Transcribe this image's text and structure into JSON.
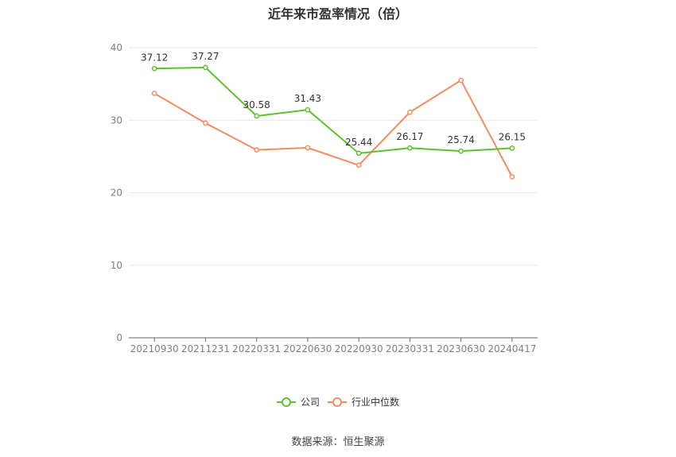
{
  "title": "近年来市盈率情况（倍）",
  "source": "数据来源：恒生聚源",
  "colors": {
    "company": "#5ac32f",
    "industry": "#f28c5f",
    "grid": "#e6e6e6",
    "axis": "#666666"
  },
  "chart_data": {
    "type": "line",
    "categories": [
      "20210930",
      "20211231",
      "20220331",
      "20220630",
      "20220930",
      "20230331",
      "20230630",
      "20240417"
    ],
    "ylim": [
      0,
      40
    ],
    "yticks": [
      0,
      10,
      20,
      30,
      40
    ],
    "grid": true,
    "legend_position": "bottom-center",
    "series": [
      {
        "name": "公司",
        "values": [
          37.12,
          37.27,
          30.58,
          31.43,
          25.44,
          26.17,
          25.74,
          26.15
        ],
        "labels": [
          "37.12",
          "37.27",
          "30.58",
          "31.43",
          "25.44",
          "26.17",
          "25.74",
          "26.15"
        ]
      },
      {
        "name": "行业中位数",
        "values": [
          33.7,
          29.6,
          25.9,
          26.2,
          23.8,
          31.1,
          35.5,
          22.2
        ]
      }
    ]
  }
}
